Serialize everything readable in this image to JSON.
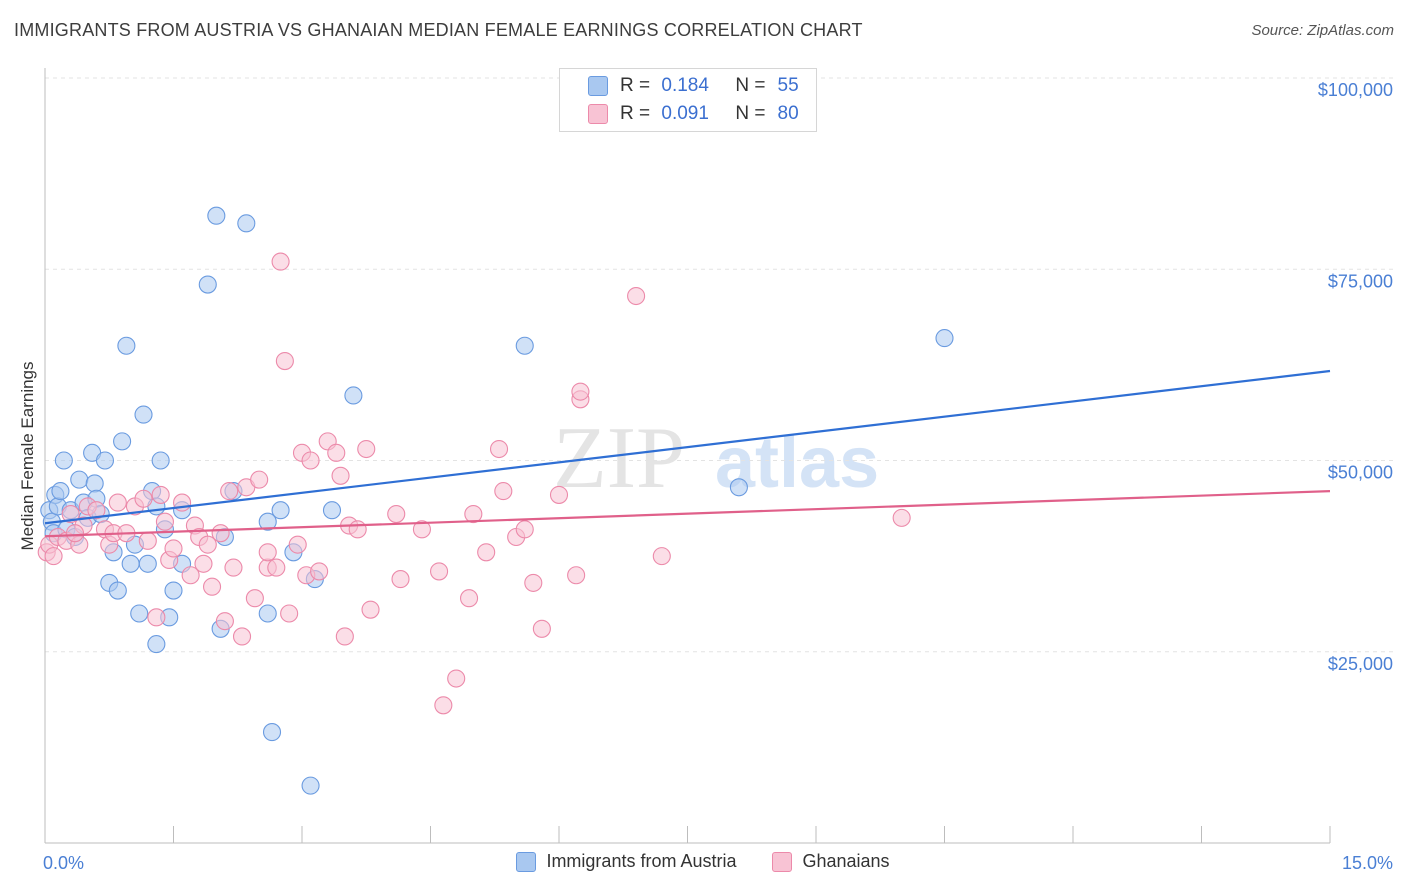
{
  "title": "IMMIGRANTS FROM AUSTRIA VS GHANAIAN MEDIAN FEMALE EARNINGS CORRELATION CHART",
  "source": "Source: ZipAtlas.com",
  "watermark": {
    "zip": "ZIP",
    "atlas": "atlas"
  },
  "stats_legend": {
    "rows": [
      {
        "r_label": "R =",
        "r_value": "0.184",
        "n_label": "N =",
        "n_value": "55",
        "color": "#a9c8f0",
        "border": "#6a9be0"
      },
      {
        "r_label": "R =",
        "r_value": "0.091",
        "n_label": "N =",
        "n_value": "80",
        "color": "#f8c3d4",
        "border": "#ec8aaa"
      }
    ]
  },
  "bottom_legend": [
    {
      "label": "Immigrants from Austria",
      "color": "#a9c8f0",
      "border": "#6a9be0"
    },
    {
      "label": "Ghanaians",
      "color": "#f8c3d4",
      "border": "#ec8aaa"
    }
  ],
  "chart_data": {
    "type": "scatter",
    "title": "IMMIGRANTS FROM AUSTRIA VS GHANAIAN MEDIAN FEMALE EARNINGS CORRELATION CHART",
    "xlabel": "",
    "ylabel": "Median Female Earnings",
    "xlim": [
      0,
      15
    ],
    "ylim": [
      0,
      105000
    ],
    "x_tick_labels": [
      "0.0%",
      "15.0%"
    ],
    "y_ticks": [
      {
        "value": 25000,
        "label": "$25,000"
      },
      {
        "value": 50000,
        "label": "$50,000"
      },
      {
        "value": 75000,
        "label": "$75,000"
      },
      {
        "value": 100000,
        "label": "$100,000"
      }
    ],
    "series": [
      {
        "name": "Immigrants from Austria",
        "color": "#6a9be0",
        "fill": "rgba(169,200,240,0.55)",
        "trend": {
          "x": [
            0,
            15
          ],
          "y": [
            41800,
            61700
          ],
          "color": "#2f6fd4"
        },
        "points": [
          [
            0.05,
            43500
          ],
          [
            0.08,
            42000
          ],
          [
            0.1,
            40500
          ],
          [
            0.12,
            45500
          ],
          [
            0.15,
            44000
          ],
          [
            0.18,
            46000
          ],
          [
            0.22,
            50000
          ],
          [
            0.25,
            41000
          ],
          [
            0.3,
            43500
          ],
          [
            0.35,
            40000
          ],
          [
            0.4,
            47500
          ],
          [
            0.45,
            44500
          ],
          [
            0.5,
            42500
          ],
          [
            0.55,
            51000
          ],
          [
            0.58,
            47000
          ],
          [
            0.6,
            45000
          ],
          [
            0.65,
            43000
          ],
          [
            0.7,
            50000
          ],
          [
            0.75,
            34000
          ],
          [
            0.8,
            38000
          ],
          [
            0.85,
            33000
          ],
          [
            0.9,
            52500
          ],
          [
            0.95,
            65000
          ],
          [
            1.0,
            36500
          ],
          [
            1.05,
            39000
          ],
          [
            1.1,
            30000
          ],
          [
            1.15,
            56000
          ],
          [
            1.2,
            36500
          ],
          [
            1.25,
            46000
          ],
          [
            1.3,
            44000
          ],
          [
            1.3,
            26000
          ],
          [
            1.35,
            50000
          ],
          [
            1.4,
            41000
          ],
          [
            1.45,
            29500
          ],
          [
            1.5,
            33000
          ],
          [
            1.6,
            43500
          ],
          [
            1.6,
            36500
          ],
          [
            1.9,
            73000
          ],
          [
            2.0,
            82000
          ],
          [
            2.05,
            28000
          ],
          [
            2.1,
            40000
          ],
          [
            2.2,
            46000
          ],
          [
            2.35,
            81000
          ],
          [
            2.6,
            42000
          ],
          [
            2.6,
            30000
          ],
          [
            2.65,
            14500
          ],
          [
            2.75,
            43500
          ],
          [
            2.9,
            38000
          ],
          [
            3.1,
            7500
          ],
          [
            3.15,
            34500
          ],
          [
            3.35,
            43500
          ],
          [
            3.6,
            58500
          ],
          [
            5.6,
            65000
          ],
          [
            8.1,
            46500
          ],
          [
            10.5,
            66000
          ]
        ]
      },
      {
        "name": "Ghanaians",
        "color": "#ec8aaa",
        "fill": "rgba(248,195,212,0.55)",
        "trend": {
          "x": [
            0,
            15
          ],
          "y": [
            40100,
            46000
          ],
          "color": "#e0608a"
        },
        "points": [
          [
            0.02,
            38000
          ],
          [
            0.05,
            39000
          ],
          [
            0.1,
            37500
          ],
          [
            0.15,
            40000
          ],
          [
            0.25,
            39500
          ],
          [
            0.3,
            43000
          ],
          [
            0.4,
            39000
          ],
          [
            0.45,
            41500
          ],
          [
            0.5,
            44000
          ],
          [
            0.6,
            43500
          ],
          [
            0.7,
            41000
          ],
          [
            0.75,
            39000
          ],
          [
            0.8,
            40500
          ],
          [
            0.85,
            44500
          ],
          [
            0.95,
            40500
          ],
          [
            1.05,
            44000
          ],
          [
            1.15,
            45000
          ],
          [
            1.2,
            39500
          ],
          [
            1.3,
            29500
          ],
          [
            1.35,
            45500
          ],
          [
            1.4,
            42000
          ],
          [
            1.45,
            37000
          ],
          [
            1.5,
            38500
          ],
          [
            1.6,
            44500
          ],
          [
            1.7,
            35000
          ],
          [
            1.75,
            41500
          ],
          [
            1.8,
            40000
          ],
          [
            1.85,
            36500
          ],
          [
            1.9,
            39000
          ],
          [
            1.95,
            33500
          ],
          [
            2.05,
            40500
          ],
          [
            2.1,
            29000
          ],
          [
            2.15,
            46000
          ],
          [
            2.2,
            36000
          ],
          [
            2.3,
            27000
          ],
          [
            2.35,
            46500
          ],
          [
            2.45,
            32000
          ],
          [
            2.5,
            47500
          ],
          [
            2.6,
            36000
          ],
          [
            2.6,
            38000
          ],
          [
            2.7,
            36000
          ],
          [
            2.75,
            76000
          ],
          [
            2.8,
            63000
          ],
          [
            2.85,
            30000
          ],
          [
            2.95,
            39000
          ],
          [
            3.0,
            51000
          ],
          [
            3.05,
            35000
          ],
          [
            3.1,
            50000
          ],
          [
            3.2,
            35500
          ],
          [
            3.3,
            52500
          ],
          [
            3.4,
            51000
          ],
          [
            3.45,
            48000
          ],
          [
            3.5,
            27000
          ],
          [
            3.55,
            41500
          ],
          [
            3.65,
            41000
          ],
          [
            3.75,
            51500
          ],
          [
            3.8,
            30500
          ],
          [
            4.1,
            43000
          ],
          [
            4.15,
            34500
          ],
          [
            4.4,
            41000
          ],
          [
            4.6,
            35500
          ],
          [
            4.65,
            18000
          ],
          [
            4.8,
            21500
          ],
          [
            4.95,
            32000
          ],
          [
            5.0,
            43000
          ],
          [
            5.15,
            38000
          ],
          [
            5.3,
            51500
          ],
          [
            5.35,
            46000
          ],
          [
            5.5,
            40000
          ],
          [
            5.6,
            41000
          ],
          [
            5.7,
            34000
          ],
          [
            5.8,
            28000
          ],
          [
            6.0,
            45500
          ],
          [
            6.2,
            35000
          ],
          [
            6.25,
            58000
          ],
          [
            6.25,
            59000
          ],
          [
            6.9,
            71500
          ],
          [
            7.2,
            37500
          ],
          [
            10.0,
            42500
          ],
          [
            0.35,
            40500
          ]
        ]
      }
    ]
  }
}
